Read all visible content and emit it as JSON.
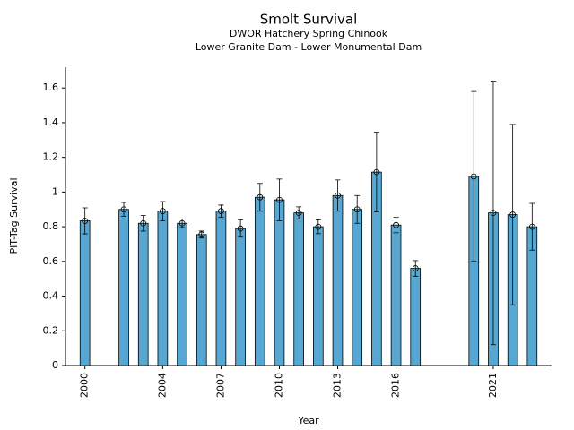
{
  "chart_data": {
    "type": "bar",
    "title": "Smolt Survival",
    "subtitle": [
      "DWOR Hatchery Spring Chinook",
      "Lower Granite Dam - Lower Monumental Dam"
    ],
    "xlabel": "Year",
    "ylabel": "PIT-Tag Survival",
    "x": [
      2000,
      2002,
      2003,
      2004,
      2005,
      2006,
      2007,
      2008,
      2009,
      2010,
      2011,
      2012,
      2013,
      2014,
      2015,
      2016,
      2017,
      2020,
      2021,
      2022,
      2023
    ],
    "values": [
      0.834,
      0.9,
      0.82,
      0.89,
      0.82,
      0.755,
      0.89,
      0.79,
      0.97,
      0.955,
      0.88,
      0.8,
      0.98,
      0.9,
      1.115,
      0.81,
      0.56,
      1.09,
      0.88,
      0.87,
      0.8
    ],
    "errors": [
      0.075,
      0.04,
      0.045,
      0.055,
      0.025,
      0.02,
      0.035,
      0.05,
      0.08,
      0.12,
      0.035,
      0.04,
      0.09,
      0.08,
      0.23,
      0.045,
      0.045,
      0.49,
      0.76,
      0.52,
      0.135
    ],
    "color": "#56a8d2",
    "xlim": [
      1999,
      2024
    ],
    "xticks": [
      2000,
      2004,
      2007,
      2010,
      2013,
      2016,
      2021
    ],
    "ylim": [
      0,
      1.72
    ],
    "yticks": [
      0,
      0.2,
      0.4,
      0.6,
      0.8,
      1,
      1.2,
      1.4,
      1.6
    ]
  }
}
